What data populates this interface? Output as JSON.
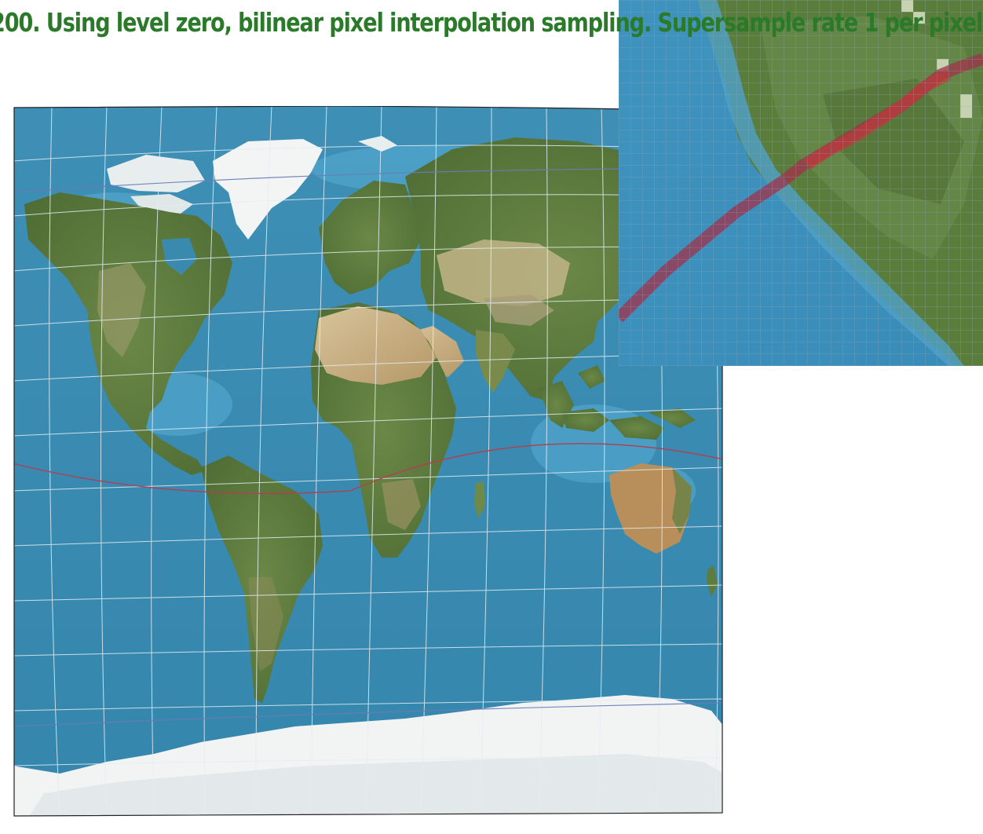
{
  "overlay": {
    "caption": "200. Using level zero, bilinear pixel interpolation sampling. Supersample rate 1 per pixel.",
    "caption_color": "#2a7a2a"
  },
  "map": {
    "ocean_color": "#3a8ab0",
    "land_color": "#5a7a3a",
    "desert_color": "#c4a97a",
    "ice_color": "#f2f4f4",
    "graticule_color": "#dde8ee",
    "equator_line_color": "#b04050",
    "tropic_line_color": "#6a7ab8"
  },
  "inset": {
    "grid_columns": 27,
    "grid_rows": 27,
    "line_color": "#c04040"
  }
}
